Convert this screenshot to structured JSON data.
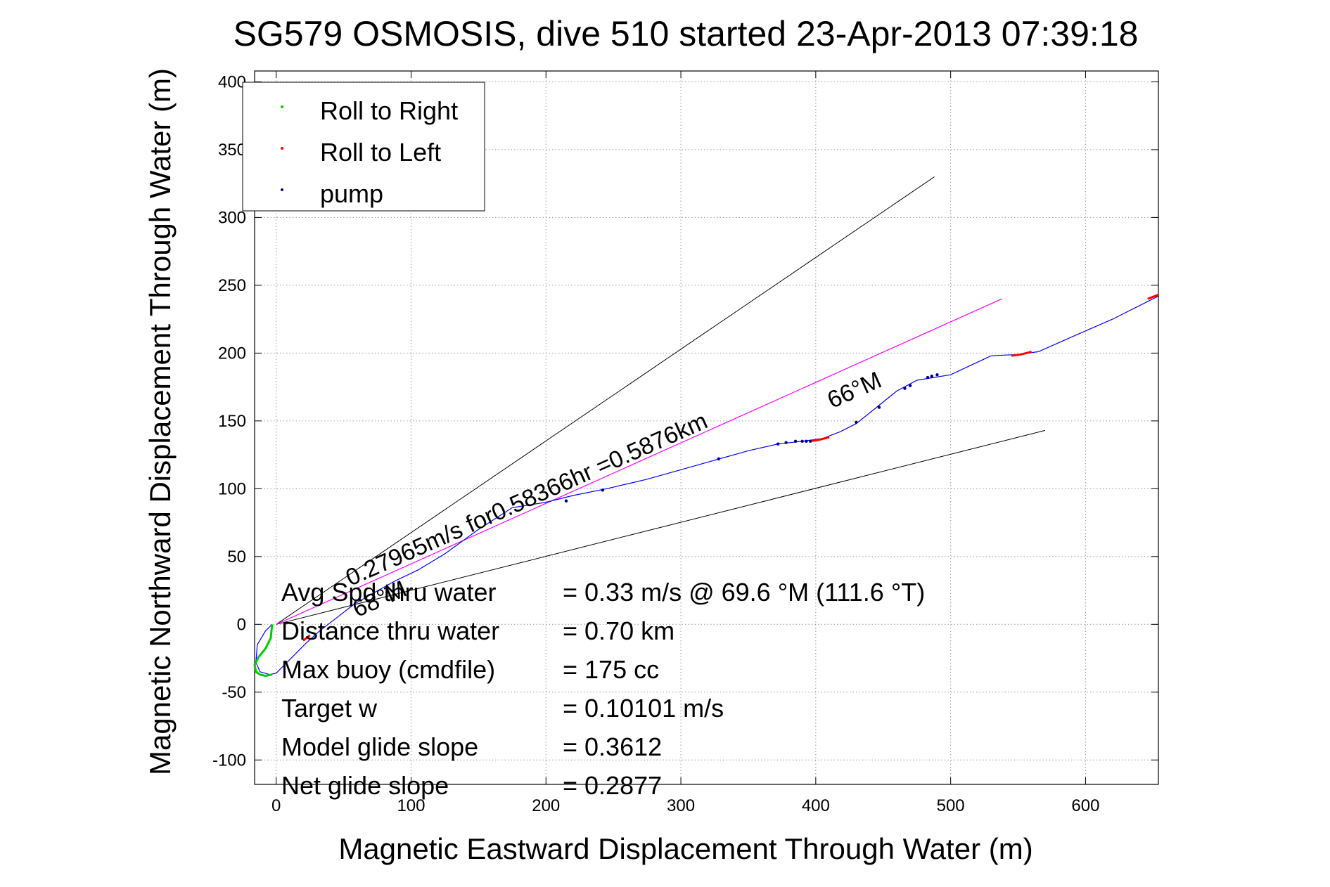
{
  "chart_data": {
    "type": "line",
    "title": "SG579 OSMOSIS, dive 510 started 23-Apr-2013 07:39:18",
    "xlabel": "Magnetic Eastward Displacement Through Water (m)",
    "ylabel": "Magnetic Northward Displacement Through Water (m)",
    "xlim": [
      -16,
      654
    ],
    "ylim": [
      -118,
      408
    ],
    "xticks": [
      0,
      100,
      200,
      300,
      400,
      500,
      600
    ],
    "xtick_labels": [
      "0",
      "100",
      "200",
      "300",
      "400",
      "500",
      "600"
    ],
    "yticks": [
      -100,
      -50,
      0,
      50,
      100,
      150,
      200,
      250,
      300,
      350,
      400
    ],
    "ytick_labels": [
      "-100",
      "-50",
      "0",
      "50",
      "100",
      "150",
      "200",
      "250",
      "300",
      "350",
      "400"
    ],
    "grid": true,
    "legend_position": "top-left",
    "legend": [
      {
        "label": "Roll to Right",
        "color": "#00cc00"
      },
      {
        "label": "Roll to Left",
        "color": "#ff0000"
      },
      {
        "label": "pump",
        "color": "#000080"
      }
    ],
    "colors": {
      "track": "#0000ff",
      "roll_right": "#00cc00",
      "roll_left": "#ff0000",
      "pump": "#000080",
      "heading_line": "#ff00ff",
      "cone_lines": "#000000"
    },
    "track": {
      "x": [
        -3,
        -8,
        -14,
        -15,
        -12,
        -5,
        0,
        6,
        14,
        22,
        32,
        45,
        58,
        72,
        88,
        105,
        125,
        150,
        175,
        200,
        220,
        245,
        275,
        300,
        325,
        350,
        372,
        390,
        405,
        418,
        430,
        445,
        460,
        475,
        500,
        530,
        550,
        565,
        590,
        620,
        654
      ],
      "y": [
        0,
        -5,
        -15,
        -28,
        -35,
        -37,
        -36,
        -30,
        -22,
        -14,
        -5,
        5,
        15,
        23,
        32,
        40,
        52,
        70,
        86,
        90,
        95,
        100,
        107,
        114,
        121,
        128,
        133,
        135,
        137,
        142,
        148,
        160,
        172,
        180,
        184,
        198,
        199,
        201,
        212,
        225,
        242
      ]
    },
    "roll_right_track": {
      "x": [
        -3,
        -4,
        -8,
        -13,
        -16,
        -15,
        -12,
        -8,
        -3
      ],
      "y": [
        0,
        -10,
        -18,
        -24,
        -30,
        -35,
        -37,
        -38,
        -37
      ]
    },
    "roll_left_segments": [
      {
        "x": [
          20,
          25
        ],
        "y": [
          -12,
          -8
        ]
      },
      {
        "x": [
          395,
          402,
          410
        ],
        "y": [
          135,
          136,
          138
        ]
      },
      {
        "x": [
          545,
          552,
          560
        ],
        "y": [
          198,
          199,
          201
        ]
      },
      {
        "x": [
          646,
          654
        ],
        "y": [
          240,
          243
        ]
      }
    ],
    "pump_points": {
      "x": [
        215,
        242,
        328,
        372,
        378,
        385,
        390,
        393,
        396,
        430,
        447,
        466,
        470,
        483,
        486,
        490
      ],
      "y": [
        91,
        99,
        122,
        133,
        134,
        135,
        135,
        135,
        135,
        149,
        160,
        174,
        176,
        182,
        183,
        184
      ]
    },
    "heading_line": {
      "x": [
        0,
        538
      ],
      "y": [
        0,
        240
      ]
    },
    "cone_upper": {
      "x": [
        0,
        488
      ],
      "y": [
        0,
        330
      ]
    },
    "cone_lower": {
      "x": [
        0,
        570
      ],
      "y": [
        0,
        143
      ]
    },
    "annotations": [
      {
        "text": "0.27965m/s for0.58366hr =0.5876km",
        "x": 55,
        "y": 28,
        "angle_deg": 24
      },
      {
        "text": "68°M",
        "x": 60,
        "y": 5,
        "angle_deg": 24
      },
      {
        "text": "66°M",
        "x": 412,
        "y": 159,
        "angle_deg": 24
      }
    ],
    "stats": [
      {
        "label": "Avg Spd thru water",
        "value": "=  0.33 m/s @  69.6 °M (111.6 °T)"
      },
      {
        "label": "Distance thru water",
        "value": "=  0.70 km"
      },
      {
        "label": "Max buoy (cmdfile)",
        "value": "= 175 cc"
      },
      {
        "label": "Target w",
        "value": "= 0.10101 m/s"
      },
      {
        "label": "Model glide slope",
        "value": "= 0.3612"
      },
      {
        "label": "Net glide slope",
        "value": "= 0.2877"
      }
    ]
  }
}
